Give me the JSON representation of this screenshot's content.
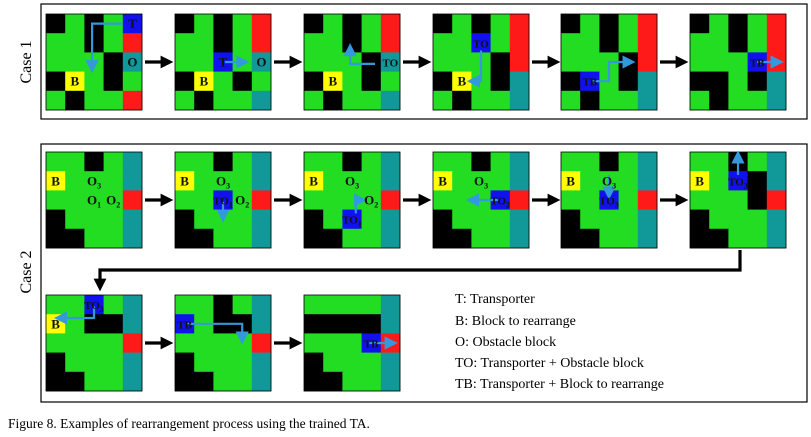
{
  "figure": {
    "caption": "Figure  8.    Examples of rearrangement process using the trained TA.",
    "case1_label": "Case 1",
    "case2_label": "Case 2",
    "legend": [
      "T: Transporter",
      "B: Block to rearrange",
      "O: Obstacle block",
      "TO: Transporter + Obstacle block",
      "TB: Transporter + Block to rearrange"
    ]
  },
  "colors": {
    "G": "#22dd22",
    "K": "#000000",
    "R": "#ff1a1a",
    "C": "#119999",
    "Y": "#ffff00",
    "N": "#1111ee",
    "arrow": "#3399dd"
  },
  "case1": {
    "grids": [
      {
        "cells": [
          "KGKGN",
          "GGKGR",
          "GGGKC",
          "KYGKG",
          "GKGGR"
        ],
        "labels": [
          {
            "r": 0,
            "c": 4,
            "t": "T"
          },
          {
            "r": 3,
            "c": 1,
            "t": "B"
          },
          {
            "r": 2,
            "c": 4,
            "t": "O"
          }
        ],
        "arrows": [
          {
            "pts": [
              [
                4.0,
                0.5
              ],
              [
                2.4,
                0.5
              ],
              [
                2.4,
                2.8
              ]
            ]
          }
        ]
      },
      {
        "cells": [
          "KGKGR",
          "GGKGR",
          "GGNGC",
          "KYGKG",
          "GKGGC"
        ],
        "labels": [
          {
            "r": 2,
            "c": 2,
            "t": "T"
          },
          {
            "r": 3,
            "c": 1,
            "t": "B"
          },
          {
            "r": 2,
            "c": 4,
            "t": "O"
          }
        ],
        "arrows": [
          {
            "pts": [
              [
                2.6,
                2.5
              ],
              [
                3.6,
                2.5
              ]
            ]
          }
        ]
      },
      {
        "cells": [
          "KGKGR",
          "GGKGR",
          "GGGKC",
          "KYGKG",
          "GKGGC"
        ],
        "labels": [
          {
            "r": 2,
            "c": 4,
            "t": "TO"
          },
          {
            "r": 3,
            "c": 1,
            "t": "B"
          }
        ],
        "arrows": [
          {
            "pts": [
              [
                3.7,
                2.6
              ],
              [
                2.4,
                2.6
              ],
              [
                2.4,
                1.8
              ]
            ]
          }
        ]
      },
      {
        "cells": [
          "KGKGR",
          "GGNGR",
          "GGGKR",
          "KYGKC",
          "GKGGC"
        ],
        "labels": [
          {
            "r": 1,
            "c": 2,
            "t": "TO"
          },
          {
            "r": 3,
            "c": 1,
            "t": "B"
          }
        ],
        "arrows": [
          {
            "pts": [
              [
                2.5,
                1.9
              ],
              [
                2.5,
                3.5
              ],
              [
                2.05,
                3.5
              ]
            ]
          }
        ]
      },
      {
        "cells": [
          "KGKGR",
          "GGKGR",
          "GGGKR",
          "KNGKC",
          "GKGGC"
        ],
        "labels": [
          {
            "r": 3,
            "c": 1,
            "t": "TB"
          }
        ],
        "arrows": [
          {
            "pts": [
              [
                1.6,
                3.5
              ],
              [
                2.5,
                3.5
              ],
              [
                2.5,
                2.5
              ],
              [
                3.6,
                2.5
              ]
            ]
          }
        ]
      },
      {
        "cells": [
          "KGKGR",
          "GGKGR",
          "GGGNR",
          "KKGKC",
          "GKGGC"
        ],
        "labels": [
          {
            "r": 2,
            "c": 3,
            "t": "TB"
          }
        ],
        "arrows": [
          {
            "pts": [
              [
                3.5,
                2.5
              ],
              [
                4.6,
                2.5
              ]
            ]
          }
        ]
      }
    ]
  },
  "case2": {
    "row1": [
      {
        "cells": [
          "GGKGC",
          "YGGGC",
          "GGGGR",
          "KGGGC",
          "KKGGC"
        ],
        "labels": [
          {
            "r": 1,
            "c": 0,
            "t": "B"
          },
          {
            "r": 1,
            "c": 2,
            "t": "O",
            "sub": "3"
          },
          {
            "r": 2,
            "c": 2,
            "t": "O",
            "sub": "1"
          },
          {
            "r": 2,
            "c": 3,
            "t": "O",
            "sub": "2"
          }
        ],
        "arrows": []
      },
      {
        "cells": [
          "GGKGC",
          "YGGGC",
          "GGNGR",
          "KGGGC",
          "KKGGC"
        ],
        "labels": [
          {
            "r": 1,
            "c": 0,
            "t": "B"
          },
          {
            "r": 1,
            "c": 2,
            "t": "O",
            "sub": "3"
          },
          {
            "r": 2,
            "c": 2,
            "t": "TO",
            "sub": "1"
          },
          {
            "r": 2,
            "c": 3,
            "t": "O",
            "sub": "2"
          }
        ],
        "arrows": [
          {
            "pts": [
              [
                2.5,
                2.6
              ],
              [
                2.5,
                3.4
              ]
            ]
          }
        ]
      },
      {
        "cells": [
          "GGKGC",
          "YGGGC",
          "GGGGR",
          "KGNGC",
          "KKGGC"
        ],
        "labels": [
          {
            "r": 1,
            "c": 0,
            "t": "B"
          },
          {
            "r": 1,
            "c": 2,
            "t": "O",
            "sub": "3"
          },
          {
            "r": 3,
            "c": 2,
            "t": "TO",
            "sub": "1"
          },
          {
            "r": 2,
            "c": 3,
            "t": "O",
            "sub": "2"
          }
        ],
        "arrows": [
          {
            "pts": [
              [
                2.7,
                3.2
              ],
              [
                2.7,
                2.5
              ],
              [
                3.0,
                2.5
              ]
            ]
          }
        ]
      },
      {
        "cells": [
          "GGKGC",
          "YGGGC",
          "GGGNR",
          "KGGGC",
          "KKGGC"
        ],
        "labels": [
          {
            "r": 1,
            "c": 0,
            "t": "B"
          },
          {
            "r": 1,
            "c": 2,
            "t": "O",
            "sub": "3"
          },
          {
            "r": 2,
            "c": 3,
            "t": "TO",
            "sub": "2"
          }
        ],
        "arrows": [
          {
            "pts": [
              [
                3.4,
                2.5
              ],
              [
                2.0,
                2.5
              ]
            ]
          }
        ]
      },
      {
        "cells": [
          "GGKGC",
          "YGGGC",
          "GGNGR",
          "KGGGC",
          "KKGGC"
        ],
        "labels": [
          {
            "r": 1,
            "c": 0,
            "t": "B"
          },
          {
            "r": 1,
            "c": 2,
            "t": "O",
            "sub": "3"
          },
          {
            "r": 2,
            "c": 2,
            "t": "TO",
            "sub": "3"
          }
        ],
        "arrows": [
          {
            "pts": [
              [
                2.5,
                1.2
              ],
              [
                2.5,
                2.2
              ]
            ]
          }
        ]
      },
      {
        "cells": [
          "GGKGC",
          "YGNKC",
          "GGGKR",
          "KGGGC",
          "KKGGC"
        ],
        "labels": [
          {
            "r": 1,
            "c": 0,
            "t": "B"
          },
          {
            "r": 1,
            "c": 2,
            "t": "TO",
            "sub": "3"
          }
        ],
        "arrows": [
          {
            "pts": [
              [
                2.5,
                1.2
              ],
              [
                2.5,
                0.2
              ]
            ]
          }
        ]
      }
    ],
    "row2": [
      {
        "cells": [
          "GGNGC",
          "YGKKC",
          "GGGGR",
          "KGGGC",
          "KKGGC"
        ],
        "labels": [
          {
            "r": 1,
            "c": 0,
            "t": "B"
          },
          {
            "r": 0,
            "c": 2,
            "t": "TO",
            "sub": "3"
          }
        ],
        "arrows": [
          {
            "pts": [
              [
                2.5,
                0.6
              ],
              [
                2.5,
                1.2
              ],
              [
                0.7,
                1.2
              ]
            ]
          }
        ]
      },
      {
        "cells": [
          "GGKGC",
          "NGKKC",
          "GGGGR",
          "KGGGC",
          "KKGGC"
        ],
        "labels": [
          {
            "r": 1,
            "c": 0,
            "t": "TB"
          }
        ],
        "arrows": [
          {
            "pts": [
              [
                0.6,
                1.5
              ],
              [
                3.5,
                1.5
              ],
              [
                3.5,
                2.3
              ]
            ]
          }
        ]
      },
      {
        "cells": [
          "GGGGC",
          "KKKKC",
          "GGGNR",
          "KGGGC",
          "KKGGC"
        ],
        "labels": [
          {
            "r": 2,
            "c": 3,
            "t": "TB"
          }
        ],
        "arrows": [
          {
            "pts": [
              [
                3.4,
                2.5
              ],
              [
                4.6,
                2.5
              ]
            ]
          }
        ]
      }
    ]
  }
}
